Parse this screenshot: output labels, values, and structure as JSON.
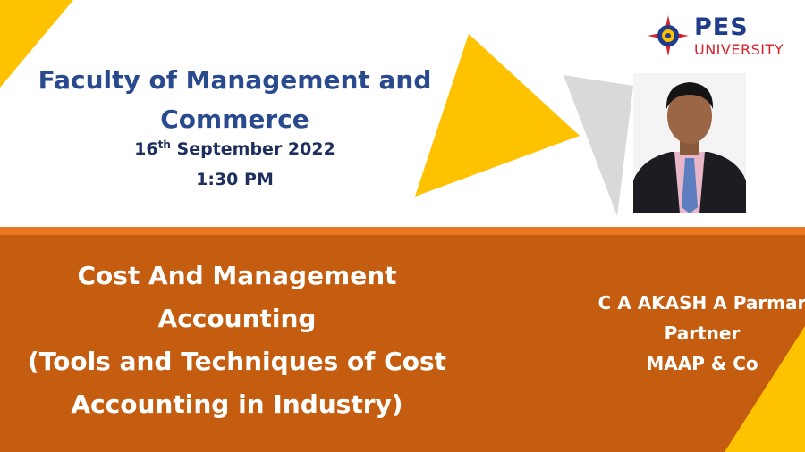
{
  "header": {
    "title": "Faculty of Management and Commerce",
    "date_day": "16",
    "date_suffix": "th",
    "date_rest": " September 2022",
    "time": "1:30 PM"
  },
  "logo": {
    "name": "PES",
    "subtitle": "UNIVERSITY",
    "icon": "compass-star-emblem-icon"
  },
  "speaker": {
    "photo_icon": "speaker-portrait-icon",
    "name": "C A AKASH A Parmar",
    "role": "Partner",
    "firm": "MAAP & Co"
  },
  "course": {
    "line1": "Cost And Management",
    "line2": "Accounting",
    "line3": "(Tools and Techniques of Cost",
    "line4": "Accounting in Industry)"
  },
  "colors": {
    "title_blue": "#2a4a8f",
    "orange_band": "#c55d10",
    "orange_stripe": "#e8771f",
    "yellow_accent": "#ffc200",
    "grey_accent": "#d9d9d9",
    "logo_red": "#d6202a"
  }
}
